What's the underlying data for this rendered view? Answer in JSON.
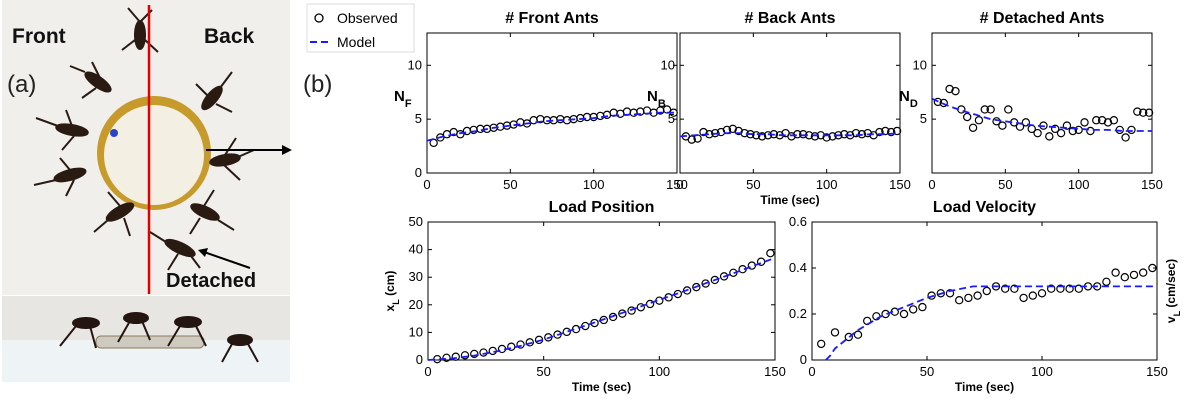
{
  "panel_a": {
    "label": "(a)",
    "front": "Front",
    "back": "Back",
    "detached": "Detached"
  },
  "panel_b": {
    "label": "(b)"
  },
  "legend": {
    "observed": "Observed",
    "model": "Model"
  },
  "colors": {
    "observed": "#000000",
    "model": "#1a1aff",
    "divider": "#e00000"
  },
  "chart_data": [
    {
      "type": "scatter",
      "title": "# Front Ants",
      "ylabel": "N",
      "ylabel_sub": "F",
      "xlabel": "",
      "xlim": [
        0,
        150
      ],
      "ylim": [
        0,
        13
      ],
      "xticks": [
        0,
        50,
        100,
        150
      ],
      "yticks": [
        0,
        5,
        10
      ],
      "series": [
        {
          "name": "Observed",
          "kind": "points",
          "x": [
            4,
            8,
            12,
            16,
            20,
            24,
            28,
            32,
            36,
            40,
            44,
            48,
            52,
            56,
            60,
            64,
            68,
            72,
            76,
            80,
            84,
            88,
            92,
            96,
            100,
            104,
            108,
            112,
            116,
            120,
            124,
            128,
            132,
            136,
            140,
            144,
            148
          ],
          "y": [
            2.8,
            3.3,
            3.6,
            3.8,
            3.6,
            3.9,
            4.0,
            4.1,
            4.1,
            4.2,
            4.3,
            4.4,
            4.5,
            4.7,
            4.6,
            4.9,
            5.0,
            4.9,
            4.9,
            5.0,
            4.9,
            5.0,
            5.1,
            5.2,
            5.2,
            5.3,
            5.4,
            5.6,
            5.5,
            5.7,
            5.6,
            5.7,
            5.8,
            5.6,
            5.8,
            5.9,
            5.6
          ]
        },
        {
          "name": "Model",
          "kind": "line",
          "x": [
            0,
            10,
            20,
            30,
            40,
            50,
            60,
            70,
            80,
            90,
            100,
            110,
            120,
            130,
            140,
            150
          ],
          "y": [
            3.0,
            3.4,
            3.7,
            3.9,
            4.2,
            4.4,
            4.6,
            4.8,
            4.9,
            5.0,
            5.1,
            5.3,
            5.4,
            5.5,
            5.6,
            5.6
          ]
        }
      ]
    },
    {
      "type": "scatter",
      "title": "# Back Ants",
      "ylabel": "N",
      "ylabel_sub": "B",
      "xlabel": "Time (sec)",
      "xlim": [
        0,
        150
      ],
      "ylim": [
        0,
        13
      ],
      "xticks": [
        0,
        50,
        100,
        150
      ],
      "yticks": [
        5,
        10
      ],
      "series": [
        {
          "name": "Observed",
          "kind": "points",
          "x": [
            4,
            8,
            12,
            16,
            20,
            24,
            28,
            32,
            36,
            40,
            44,
            48,
            52,
            56,
            60,
            64,
            68,
            72,
            76,
            80,
            84,
            88,
            92,
            96,
            100,
            104,
            108,
            112,
            116,
            120,
            124,
            128,
            132,
            136,
            140,
            144,
            148
          ],
          "y": [
            3.4,
            3.1,
            3.2,
            3.8,
            3.6,
            3.7,
            3.8,
            4.0,
            4.1,
            3.9,
            3.7,
            3.6,
            3.5,
            3.4,
            3.5,
            3.6,
            3.5,
            3.7,
            3.4,
            3.6,
            3.6,
            3.5,
            3.4,
            3.5,
            3.3,
            3.4,
            3.5,
            3.6,
            3.5,
            3.7,
            3.6,
            3.7,
            3.5,
            3.8,
            3.9,
            3.8,
            3.9
          ]
        },
        {
          "name": "Model",
          "kind": "line",
          "x": [
            0,
            10,
            20,
            30,
            40,
            50,
            60,
            70,
            80,
            90,
            100,
            110,
            120,
            130,
            140,
            150
          ],
          "y": [
            3.4,
            3.5,
            3.6,
            3.7,
            3.7,
            3.6,
            3.6,
            3.5,
            3.5,
            3.5,
            3.5,
            3.5,
            3.5,
            3.6,
            3.6,
            3.7
          ]
        }
      ]
    },
    {
      "type": "scatter",
      "title": "# Detached Ants",
      "ylabel": "N",
      "ylabel_sub": "D",
      "xlabel": "",
      "xlim": [
        0,
        150
      ],
      "ylim": [
        0,
        13
      ],
      "xticks": [
        0,
        50,
        100,
        150
      ],
      "yticks": [
        5,
        10
      ],
      "series": [
        {
          "name": "Observed",
          "kind": "points",
          "x": [
            4,
            8,
            12,
            16,
            20,
            24,
            28,
            32,
            36,
            40,
            44,
            48,
            52,
            56,
            60,
            64,
            68,
            72,
            76,
            80,
            84,
            88,
            92,
            96,
            100,
            104,
            108,
            112,
            116,
            120,
            124,
            128,
            132,
            136,
            140,
            144,
            148
          ],
          "y": [
            6.6,
            6.5,
            7.8,
            7.6,
            5.9,
            5.2,
            4.2,
            4.9,
            5.9,
            5.9,
            4.8,
            4.4,
            5.9,
            4.7,
            4.3,
            4.7,
            4.1,
            3.7,
            4.4,
            3.4,
            4.1,
            3.7,
            4.4,
            3.9,
            4.0,
            4.7,
            3.9,
            4.9,
            4.9,
            4.7,
            4.9,
            4.0,
            3.3,
            4.0,
            5.7,
            5.6,
            5.6
          ]
        },
        {
          "name": "Model",
          "kind": "line",
          "x": [
            0,
            10,
            20,
            30,
            40,
            50,
            60,
            70,
            80,
            90,
            100,
            110,
            120,
            130,
            140,
            150
          ],
          "y": [
            6.9,
            6.3,
            5.8,
            5.4,
            5.0,
            4.8,
            4.6,
            4.4,
            4.3,
            4.2,
            4.1,
            4.0,
            4.0,
            3.9,
            3.9,
            3.9
          ]
        }
      ]
    },
    {
      "type": "scatter",
      "title": "Load Position",
      "ylabel": "x",
      "ylabel_sub": "L",
      "ylabel_unit": " (cm)",
      "xlabel": "Time (sec)",
      "xlim": [
        0,
        150
      ],
      "ylim": [
        0,
        50
      ],
      "xticks": [
        0,
        50,
        100,
        150
      ],
      "yticks": [
        0,
        10,
        20,
        30,
        40,
        50
      ],
      "series": [
        {
          "name": "Observed",
          "kind": "points",
          "x": [
            4,
            8,
            12,
            16,
            20,
            24,
            28,
            32,
            36,
            40,
            44,
            48,
            52,
            56,
            60,
            64,
            68,
            72,
            76,
            80,
            84,
            88,
            92,
            96,
            100,
            104,
            108,
            112,
            116,
            120,
            124,
            128,
            132,
            136,
            140,
            144,
            148
          ],
          "y": [
            0.3,
            0.8,
            1.2,
            1.7,
            2.2,
            2.7,
            3.3,
            4.0,
            4.8,
            5.6,
            6.4,
            7.3,
            8.2,
            9.2,
            10.2,
            11.2,
            12.3,
            13.4,
            14.5,
            15.6,
            16.8,
            17.9,
            19.1,
            20.3,
            21.5,
            22.7,
            23.9,
            25.2,
            26.4,
            27.7,
            29.0,
            30.3,
            31.6,
            32.9,
            34.2,
            35.6,
            38.7
          ]
        },
        {
          "name": "Model",
          "kind": "line",
          "x": [
            0,
            10,
            20,
            30,
            40,
            50,
            60,
            70,
            80,
            90,
            100,
            110,
            120,
            130,
            140,
            150
          ],
          "y": [
            0.0,
            0.5,
            1.6,
            3.2,
            5.1,
            7.4,
            10.2,
            13.0,
            15.9,
            18.8,
            21.8,
            24.7,
            27.8,
            30.8,
            33.9,
            37.0
          ]
        }
      ]
    },
    {
      "type": "scatter",
      "title": "Load Velocity",
      "ylabel": "v",
      "ylabel_sub": "L",
      "ylabel_unit": " (cm/sec)",
      "xlabel": "Time (sec)",
      "xlim": [
        0,
        150
      ],
      "ylim": [
        0,
        0.6
      ],
      "xticks": [
        0,
        50,
        100,
        150
      ],
      "yticks": [
        0,
        0.2,
        0.4,
        0.6
      ],
      "series": [
        {
          "name": "Observed",
          "kind": "points",
          "x": [
            4,
            10,
            16,
            20,
            24,
            28,
            32,
            36,
            40,
            44,
            48,
            52,
            56,
            60,
            64,
            68,
            72,
            76,
            80,
            84,
            88,
            92,
            96,
            100,
            104,
            108,
            112,
            116,
            120,
            124,
            128,
            132,
            136,
            140,
            144,
            148
          ],
          "y": [
            0.07,
            0.12,
            0.1,
            0.11,
            0.17,
            0.19,
            0.2,
            0.21,
            0.2,
            0.22,
            0.23,
            0.28,
            0.29,
            0.29,
            0.26,
            0.27,
            0.28,
            0.3,
            0.32,
            0.31,
            0.31,
            0.27,
            0.28,
            0.29,
            0.31,
            0.31,
            0.31,
            0.31,
            0.32,
            0.32,
            0.34,
            0.38,
            0.36,
            0.37,
            0.38,
            0.4
          ]
        },
        {
          "name": "Model",
          "kind": "line",
          "x": [
            6,
            8,
            10,
            15,
            20,
            25,
            30,
            40,
            50,
            60,
            70,
            80,
            90,
            100,
            110,
            120,
            130,
            140,
            150
          ],
          "y": [
            0.0,
            0.02,
            0.05,
            0.09,
            0.13,
            0.16,
            0.19,
            0.23,
            0.27,
            0.3,
            0.32,
            0.32,
            0.32,
            0.32,
            0.32,
            0.32,
            0.32,
            0.32,
            0.32
          ]
        }
      ]
    }
  ]
}
